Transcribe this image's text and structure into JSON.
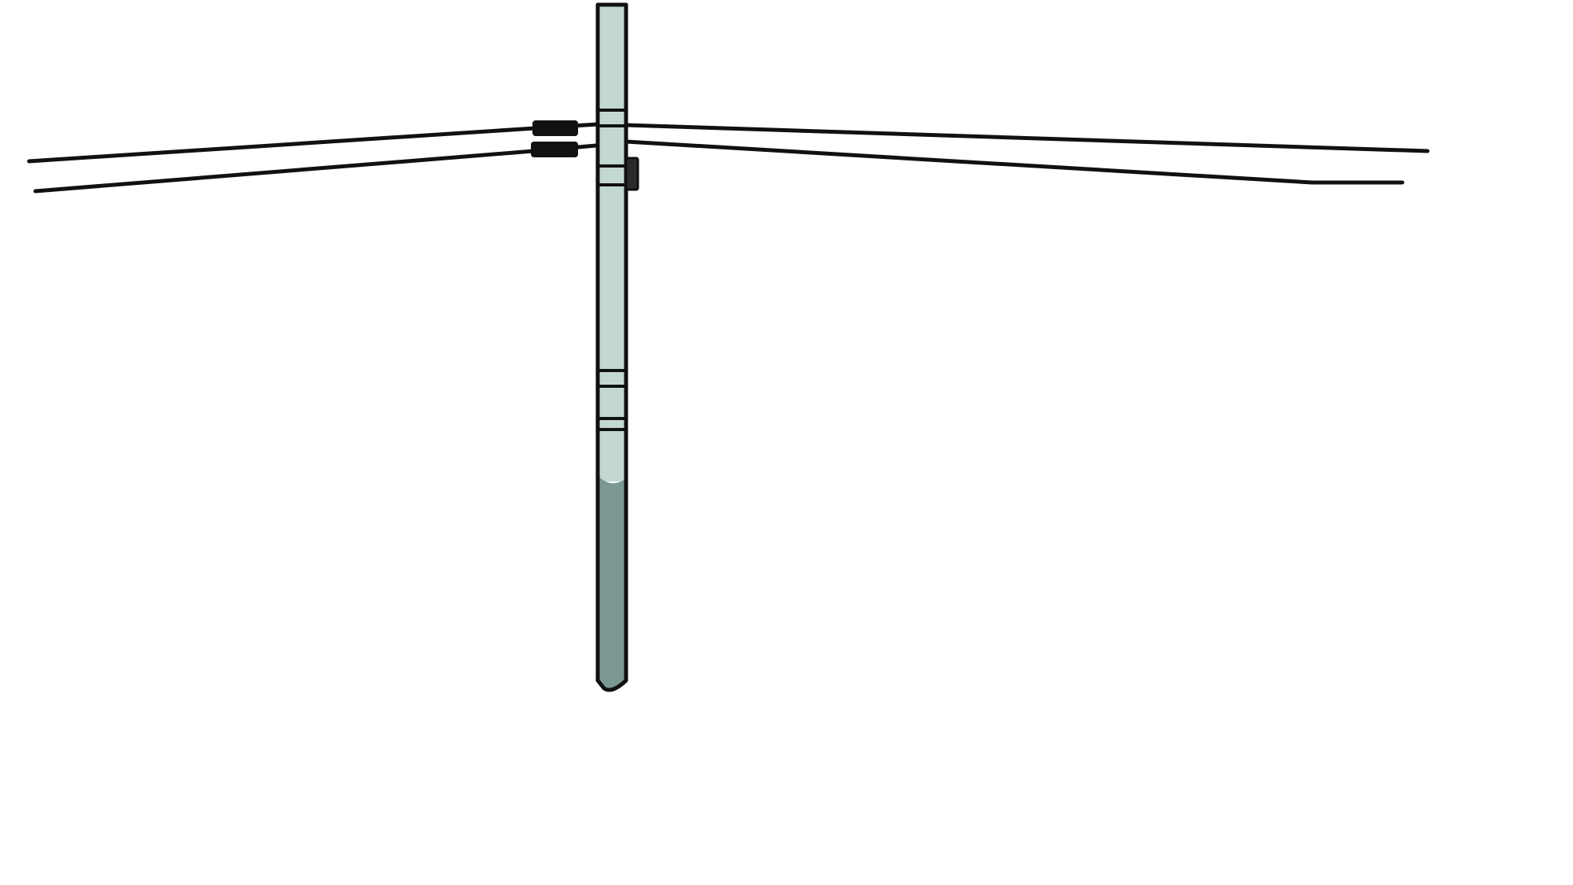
{
  "scene": {
    "background": "#ffffff",
    "pole": {
      "upper_color": "#c3d8d1",
      "lower_color": "#7b9992",
      "outline_color": "#111111"
    },
    "wire_color": "#111111",
    "insulator_color": "#111111"
  }
}
